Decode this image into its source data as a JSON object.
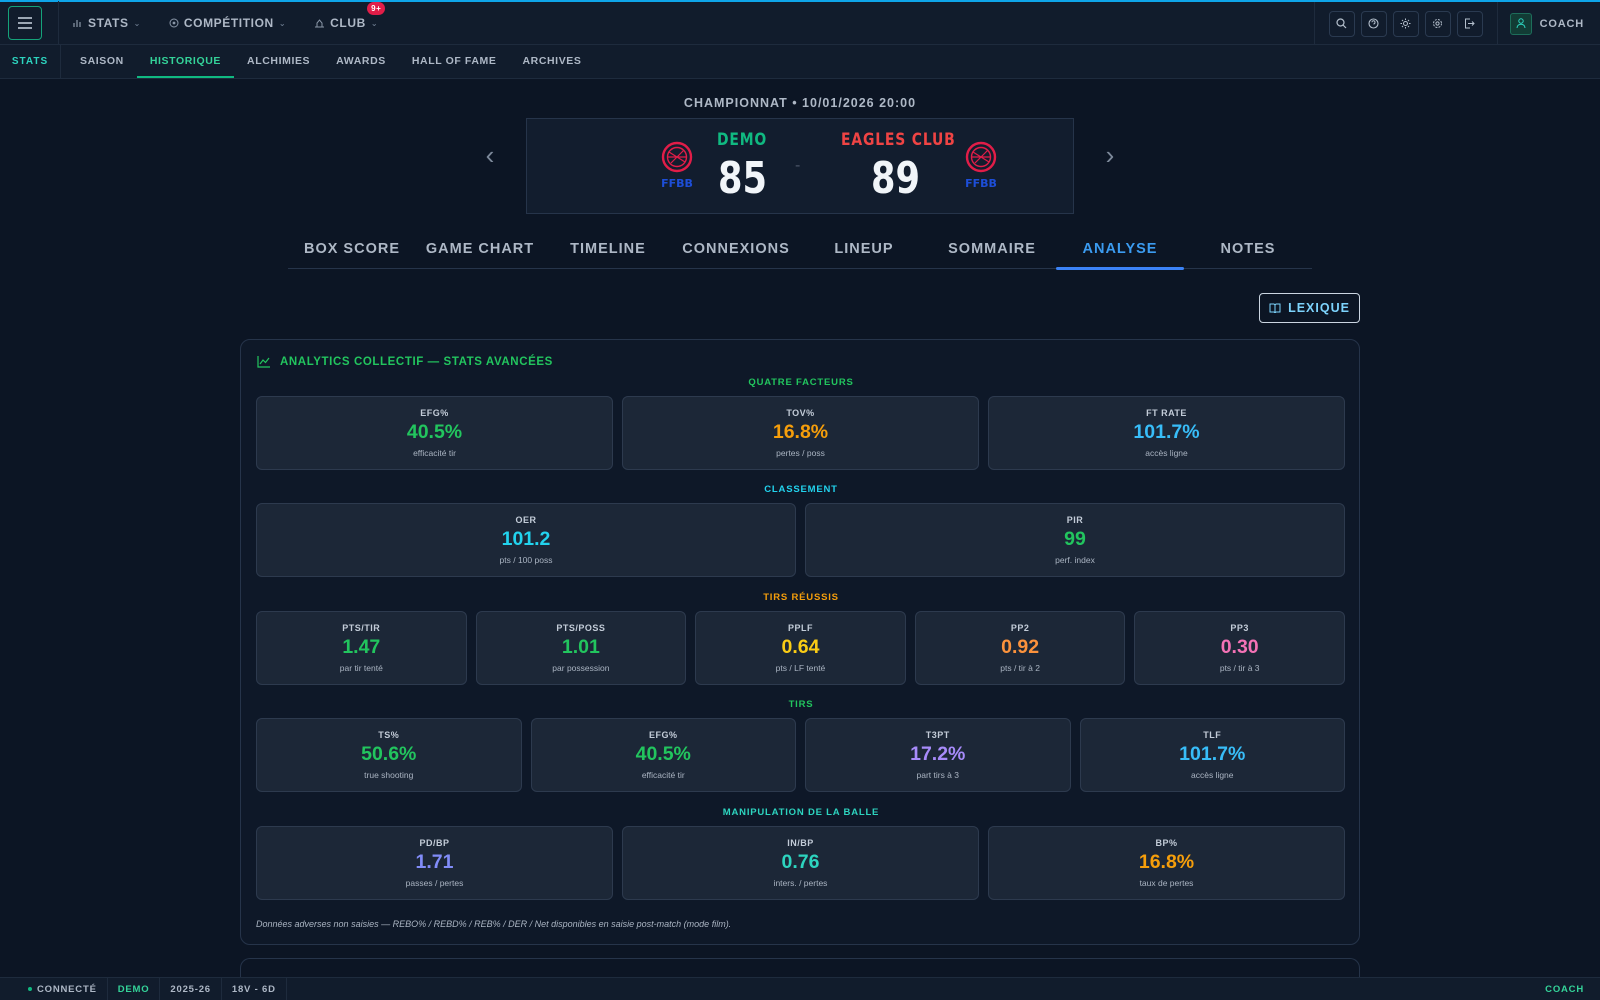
{
  "topbar": {
    "nav": [
      {
        "label": "STATS",
        "icon": "bar-chart-icon"
      },
      {
        "label": "COMPÉTITION",
        "icon": "target-icon"
      },
      {
        "label": "CLUB",
        "icon": "club-icon",
        "badge": "9+"
      }
    ],
    "user_label": "COACH"
  },
  "subnav": {
    "brand": "STATS",
    "tabs": [
      "SAISON",
      "HISTORIQUE",
      "ALCHIMIES",
      "AWARDS",
      "HALL OF FAME",
      "ARCHIVES"
    ],
    "active": "HISTORIQUE"
  },
  "game": {
    "header": "CHAMPIONNAT • 10/01/2026 20:00",
    "home": {
      "name": "DEMO",
      "score": "85",
      "color": "#10b981",
      "logo_text": "FFBB"
    },
    "away": {
      "name": "EAGLES CLUB",
      "score": "89",
      "color": "#ef4444",
      "logo_text": "FFBB"
    },
    "separator": "-"
  },
  "game_tabs": {
    "items": [
      "BOX SCORE",
      "GAME CHART",
      "TIMELINE",
      "CONNEXIONS",
      "LINEUP",
      "SOMMAIRE",
      "ANALYSE",
      "NOTES"
    ],
    "active": "ANALYSE"
  },
  "lexique_label": "LEXIQUE",
  "analytics": {
    "title": "ANALYTICS COLLECTIF — STATS AVANCÉES",
    "sections": [
      {
        "title": "QUATRE FACTEURS",
        "color": "#22c55e",
        "cards": [
          {
            "label": "EFG%",
            "value": "40.5%",
            "sub": "efficacité tir",
            "color": "#22c55e"
          },
          {
            "label": "TOV%",
            "value": "16.8%",
            "sub": "pertes / poss",
            "color": "#f59e0b"
          },
          {
            "label": "FT RATE",
            "value": "101.7%",
            "sub": "accès ligne",
            "color": "#38bdf8"
          }
        ]
      },
      {
        "title": "CLASSEMENT",
        "color": "#22d3ee",
        "cards": [
          {
            "label": "OER",
            "value": "101.2",
            "sub": "pts / 100 poss",
            "color": "#22d3ee"
          },
          {
            "label": "PIR",
            "value": "99",
            "sub": "perf. index",
            "color": "#22c55e"
          }
        ]
      },
      {
        "title": "TIRS RÉUSSIS",
        "color": "#f59e0b",
        "cards": [
          {
            "label": "PTS/TIR",
            "value": "1.47",
            "sub": "par tir tenté",
            "color": "#22c55e"
          },
          {
            "label": "PTS/POSS",
            "value": "1.01",
            "sub": "par possession",
            "color": "#22c55e"
          },
          {
            "label": "PPLF",
            "value": "0.64",
            "sub": "pts / LF tenté",
            "color": "#facc15"
          },
          {
            "label": "PP2",
            "value": "0.92",
            "sub": "pts / tir à 2",
            "color": "#fb923c"
          },
          {
            "label": "PP3",
            "value": "0.30",
            "sub": "pts / tir à 3",
            "color": "#f472b6"
          }
        ]
      },
      {
        "title": "TIRS",
        "color": "#22c55e",
        "cards": [
          {
            "label": "TS%",
            "value": "50.6%",
            "sub": "true shooting",
            "color": "#22c55e"
          },
          {
            "label": "EFG%",
            "value": "40.5%",
            "sub": "efficacité tir",
            "color": "#22c55e"
          },
          {
            "label": "T3PT",
            "value": "17.2%",
            "sub": "part tirs à 3",
            "color": "#a78bfa"
          },
          {
            "label": "TLF",
            "value": "101.7%",
            "sub": "accès ligne",
            "color": "#38bdf8"
          }
        ]
      },
      {
        "title": "MANIPULATION DE LA BALLE",
        "color": "#2dd4bf",
        "cards": [
          {
            "label": "PD/BP",
            "value": "1.71",
            "sub": "passes / pertes",
            "color": "#818cf8"
          },
          {
            "label": "IN/BP",
            "value": "0.76",
            "sub": "inters. / pertes",
            "color": "#2dd4bf"
          },
          {
            "label": "BP%",
            "value": "16.8%",
            "sub": "taux de pertes",
            "color": "#f59e0b"
          }
        ]
      }
    ],
    "note": "Données adverses non saisies — REBO% / REBD% / REB% / DER / Net disponibles en saisie post-match (mode film)."
  },
  "statusbar": {
    "connection": "CONNECTÉ",
    "team": "DEMO",
    "season": "2025-26",
    "record": "18V - 6D",
    "role": "COACH"
  }
}
